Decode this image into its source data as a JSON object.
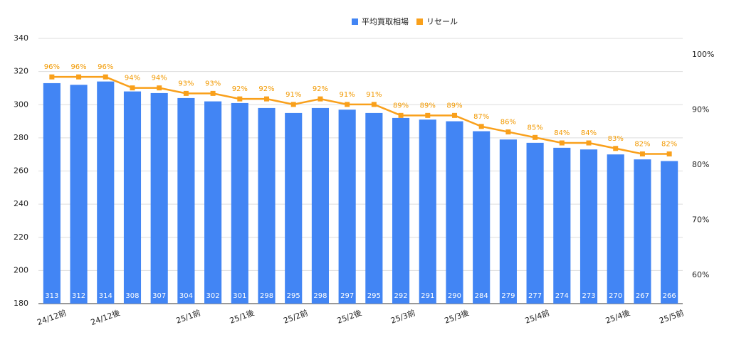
{
  "chart_data": {
    "type": "bar_line",
    "categories": [
      "24/12前",
      null,
      "24/12後",
      null,
      null,
      "25/1前",
      null,
      "25/1後",
      null,
      "25/2前",
      null,
      "25/2後",
      null,
      "25/3前",
      null,
      "25/3後",
      null,
      null,
      "25/4前",
      null,
      null,
      "25/4後",
      null,
      "25/5前"
    ],
    "series": [
      {
        "name": "平均買取相場",
        "type": "bar",
        "color": "#4285f4",
        "values": [
          313,
          312,
          314,
          308,
          307,
          304,
          302,
          301,
          298,
          295,
          298,
          297,
          295,
          292,
          291,
          290,
          284,
          279,
          277,
          274,
          273,
          270,
          267,
          266
        ]
      },
      {
        "name": "リセール",
        "type": "line",
        "axis": "y2",
        "color": "#f9a01b",
        "values": [
          96,
          96,
          96,
          94,
          94,
          93,
          93,
          92,
          92,
          91,
          92,
          91,
          91,
          89,
          89,
          89,
          87,
          86,
          85,
          84,
          84,
          83,
          82,
          82
        ],
        "value_labels": [
          "96%",
          "96%",
          "96%",
          "94%",
          "94%",
          "93%",
          "93%",
          "92%",
          "92%",
          "91%",
          "92%",
          "91%",
          "91%",
          "89%",
          "89%",
          "89%",
          "87%",
          "86%",
          "85%",
          "84%",
          "84%",
          "83%",
          "82%",
          "82%"
        ]
      }
    ],
    "ylim": [
      180,
      340
    ],
    "yticks": [
      180,
      200,
      220,
      240,
      260,
      280,
      300,
      320,
      340
    ],
    "y2lim": [
      54.8,
      103
    ],
    "y2ticks": [
      {
        "value": 60,
        "label": "60%"
      },
      {
        "value": 70,
        "label": "70%"
      },
      {
        "value": 80,
        "label": "80%"
      },
      {
        "value": 90,
        "label": "90%"
      },
      {
        "value": 100,
        "label": "100%"
      }
    ],
    "grid": true,
    "legend": "top"
  }
}
